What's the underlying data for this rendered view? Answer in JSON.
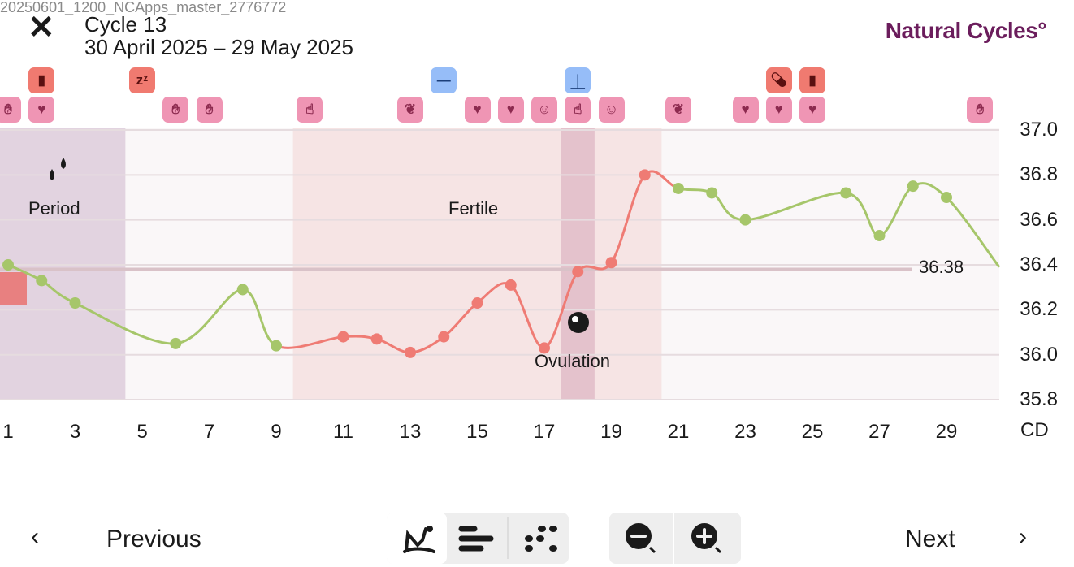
{
  "header": {
    "faint_text": "20250601_1200_NCApps_master_2776772",
    "close_icon": "close-icon",
    "title": "Cycle 13",
    "date_range": "30 April 2025 – 29 May 2025",
    "logo": "Natural Cycles°"
  },
  "colors": {
    "period": "#e2d3e0",
    "fertile": "#f6e4e4",
    "ovulation": "#e4c2cc",
    "green_line": "#a6c66a",
    "red_line": "#ef7b74",
    "pink_icon": "#ef95b4",
    "red_icon": "#f07a70",
    "blue_icon": "#96bdf8",
    "logo": "#6b1d5c"
  },
  "chart_data": {
    "type": "line",
    "xlabel": "CD",
    "ylim": [
      35.8,
      37.0
    ],
    "y_ticks": [
      "37.0",
      "36.8",
      "36.6",
      "36.4",
      "36.2",
      "36.0",
      "35.8"
    ],
    "x_ticks": [
      "1",
      "3",
      "5",
      "7",
      "9",
      "11",
      "13",
      "15",
      "17",
      "19",
      "21",
      "23",
      "25",
      "27",
      "29"
    ],
    "coverline": {
      "value": 36.38,
      "label": "36.38"
    },
    "bands": [
      {
        "label": "Period",
        "from": 0.5,
        "to": 4.5,
        "type": "period"
      },
      {
        "label": "Fertile",
        "from": 9.5,
        "to": 20.5,
        "type": "fertile"
      },
      {
        "label": "Ovulation",
        "from": 17.5,
        "to": 18.5,
        "type": "ovulation"
      }
    ],
    "points": [
      [
        1,
        36.4,
        "g"
      ],
      [
        2,
        36.33,
        "g"
      ],
      [
        3,
        36.23,
        "g"
      ],
      [
        6,
        36.05,
        "g"
      ],
      [
        8,
        36.29,
        "g"
      ],
      [
        9,
        36.04,
        "g"
      ],
      [
        11,
        36.08,
        "r"
      ],
      [
        12,
        36.07,
        "r"
      ],
      [
        13,
        36.01,
        "r"
      ],
      [
        14,
        36.08,
        "r"
      ],
      [
        15,
        36.23,
        "r"
      ],
      [
        16,
        36.31,
        "r"
      ],
      [
        17,
        36.03,
        "r"
      ],
      [
        18,
        36.37,
        "r"
      ],
      [
        19,
        36.41,
        "r"
      ],
      [
        20,
        36.8,
        "r"
      ],
      [
        21,
        36.74,
        "g"
      ],
      [
        22,
        36.72,
        "g"
      ],
      [
        23,
        36.6,
        "g"
      ],
      [
        26,
        36.72,
        "g"
      ],
      [
        27,
        36.53,
        "g"
      ],
      [
        28,
        36.75,
        "g"
      ],
      [
        29,
        36.7,
        "g"
      ]
    ],
    "icons_top": [
      [
        2,
        "glass-icon",
        "red"
      ],
      [
        5,
        "sleep-icon",
        "red"
      ],
      [
        14,
        "test-negative-icon",
        "blue"
      ],
      [
        18,
        "lh-peak-icon",
        "blue"
      ],
      [
        24,
        "pill-icon",
        "red"
      ],
      [
        25,
        "glass-icon",
        "red"
      ]
    ],
    "icons_bottom": [
      [
        1,
        "hand-icon"
      ],
      [
        2,
        "heart-icon"
      ],
      [
        6,
        "hand-icon"
      ],
      [
        7,
        "hand-icon"
      ],
      [
        10,
        "finger-icon"
      ],
      [
        13,
        "peach-icon"
      ],
      [
        15,
        "heart-lock-icon"
      ],
      [
        16,
        "heart-lock-icon"
      ],
      [
        17,
        "tongue-icon"
      ],
      [
        18,
        "finger-icon"
      ],
      [
        19,
        "tongue-icon"
      ],
      [
        21,
        "peach-icon"
      ],
      [
        23,
        "heart-icon"
      ],
      [
        24,
        "heart-icon"
      ],
      [
        25,
        "heart-icon"
      ],
      [
        30,
        "hand-icon"
      ]
    ]
  },
  "footer": {
    "previous": "Previous",
    "next": "Next",
    "views": [
      "graph-view",
      "list-view",
      "dots-view"
    ],
    "zoom": [
      "zoom-out",
      "zoom-in"
    ]
  }
}
